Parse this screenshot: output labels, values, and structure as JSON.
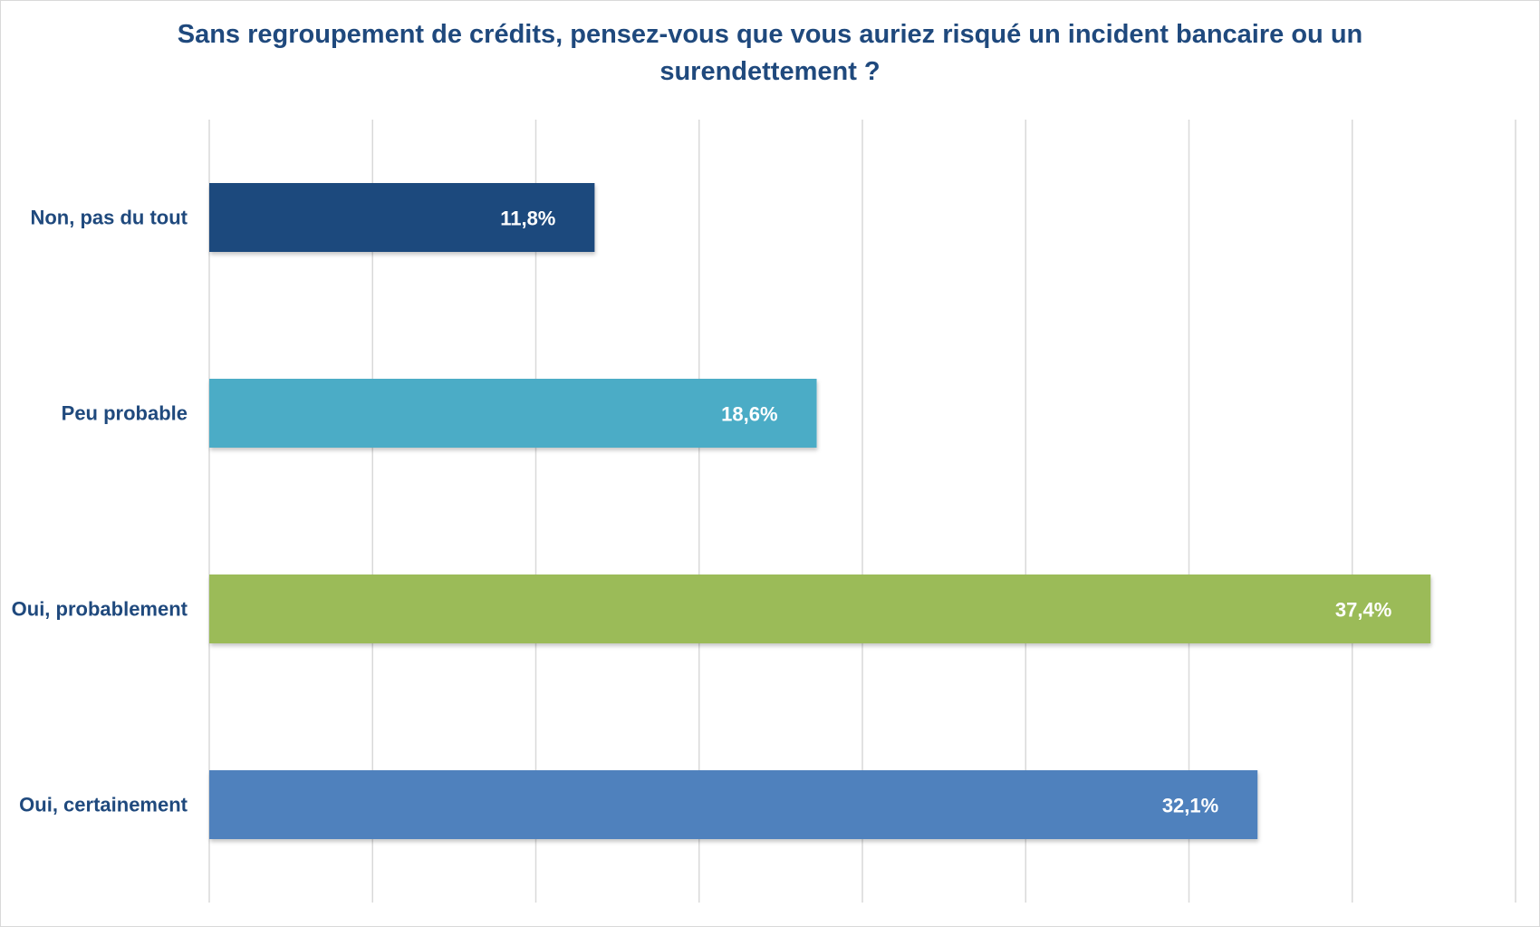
{
  "chart_data": {
    "type": "bar",
    "orientation": "horizontal",
    "title": "Sans regroupement de crédits, pensez-vous que vous auriez risqué un incident bancaire ou un surendettement ?",
    "categories": [
      "Non, pas du tout",
      "Peu probable",
      "Oui, probablement",
      "Oui, certainement"
    ],
    "values": [
      11.8,
      18.6,
      37.4,
      32.1
    ],
    "value_labels": [
      "11,8%",
      "18,6%",
      "37,4%",
      "32,1%"
    ],
    "colors": [
      "#1f497d",
      "#4bacc6",
      "#9bbb59",
      "#4f81bd"
    ],
    "xlim": [
      0,
      40
    ],
    "grid": true,
    "gridline_step": 5,
    "legend": "none",
    "xlabel": "",
    "ylabel": ""
  },
  "style": {
    "title_color": "#1f497d",
    "label_color": "#1f497d",
    "value_label_color": "#ffffff",
    "grid_color": "#d9d9d9"
  }
}
